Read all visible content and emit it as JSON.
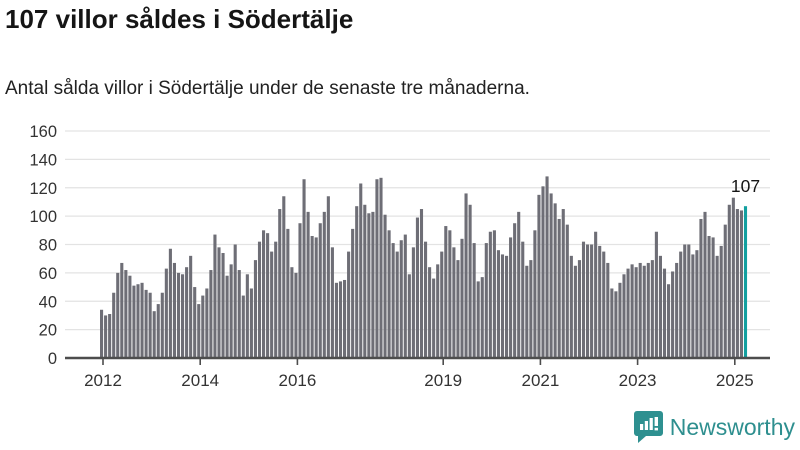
{
  "header": {
    "title": "107 villor såldes i Södertälje",
    "subtitle": "Antal sålda villor i Södertälje under de senaste tre månaderna."
  },
  "chart_data": {
    "type": "bar",
    "title": "107 villor såldes i Södertälje",
    "subtitle": "Antal sålda villor i Södertälje under de senaste tre månaderna.",
    "x_start": "2012-01",
    "x_end": "2025-04",
    "frequency": "monthly",
    "values": [
      34,
      30,
      31,
      46,
      60,
      67,
      62,
      58,
      51,
      52,
      53,
      48,
      46,
      33,
      38,
      46,
      63,
      77,
      67,
      60,
      59,
      64,
      72,
      50,
      38,
      44,
      49,
      62,
      87,
      78,
      74,
      58,
      66,
      80,
      62,
      44,
      59,
      49,
      69,
      82,
      90,
      88,
      75,
      82,
      105,
      114,
      91,
      64,
      60,
      95,
      126,
      103,
      86,
      85,
      95,
      103,
      114,
      78,
      53,
      54,
      55,
      75,
      91,
      107,
      123,
      108,
      102,
      103,
      126,
      127,
      101,
      90,
      81,
      75,
      83,
      87,
      59,
      78,
      99,
      105,
      82,
      64,
      56,
      66,
      75,
      93,
      90,
      78,
      69,
      84,
      116,
      108,
      81,
      54,
      57,
      81,
      89,
      90,
      76,
      73,
      72,
      85,
      95,
      103,
      82,
      65,
      69,
      90,
      115,
      121,
      128,
      116,
      109,
      98,
      105,
      94,
      72,
      65,
      69,
      82,
      80,
      80,
      89,
      79,
      75,
      67,
      49,
      47,
      53,
      59,
      63,
      66,
      64,
      67,
      65,
      67,
      69,
      89,
      72,
      63,
      52,
      61,
      67,
      75,
      80,
      80,
      73,
      76,
      98,
      103,
      86,
      85,
      72,
      79,
      94,
      108,
      113,
      105,
      104,
      107
    ],
    "highlight": {
      "index": 159,
      "value": 107,
      "label": "107",
      "color": "#12a0a0"
    },
    "bar_color": "#6e6e76",
    "ylim": [
      0,
      160
    ],
    "yticks": [
      0,
      20,
      40,
      60,
      80,
      100,
      120,
      140,
      160
    ],
    "xticks": [
      "2012",
      "2014",
      "2016",
      "2019",
      "2021",
      "2023",
      "2025"
    ],
    "grid": true,
    "gridline_color": "#e3e3e3",
    "axis_color": "#4d4d4d",
    "tick_label_color": "#333333",
    "annotation_color": "#151515",
    "legend": "none"
  },
  "footer": {
    "brand": "Newsworthy",
    "brand_color": "#2e8f8f",
    "logo_icon": "bar-chart-speech-bubble-icon",
    "logo_color": "#2e9090"
  }
}
